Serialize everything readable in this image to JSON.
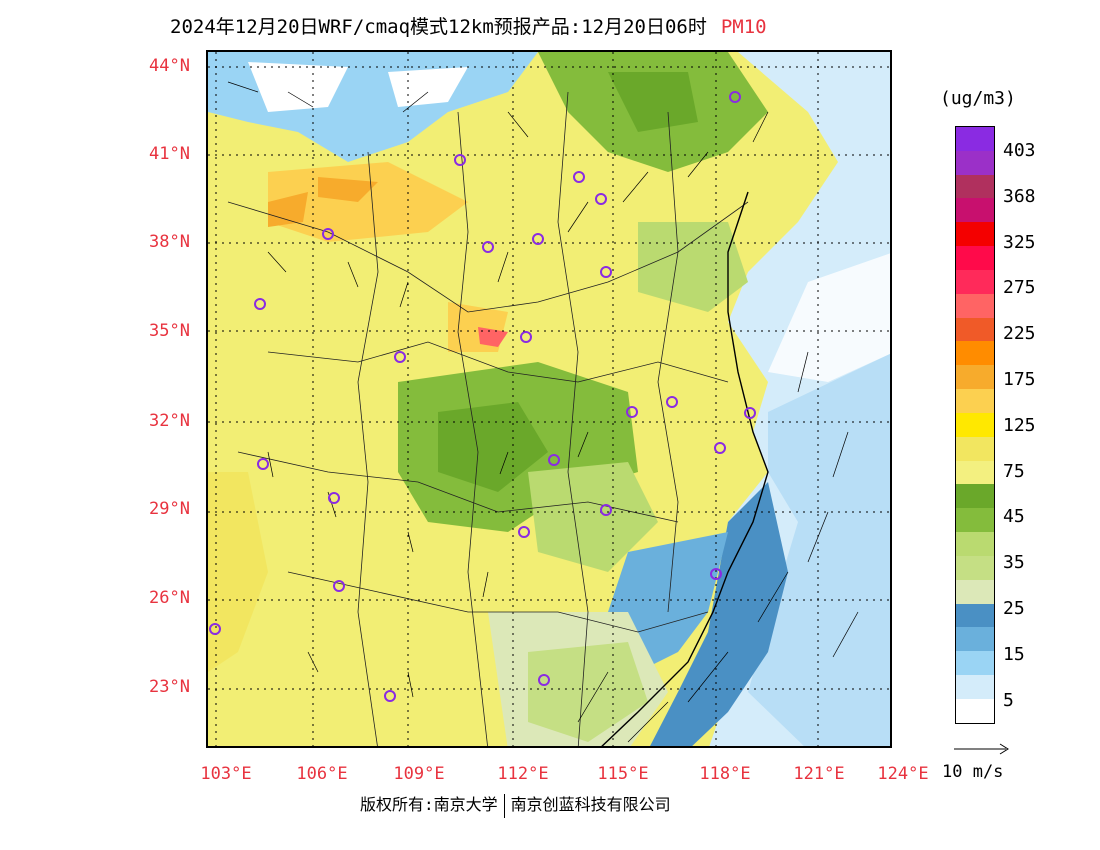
{
  "title": "2024年12月20日WRF/cmaq模式12km预报产品:12月20日06时",
  "variable": "PM10",
  "units": "(ug/m3)",
  "lat_labels": [
    "44°N",
    "41°N",
    "38°N",
    "35°N",
    "32°N",
    "29°N",
    "26°N",
    "23°N"
  ],
  "lon_labels": [
    "103°E",
    "106°E",
    "109°E",
    "112°E",
    "115°E",
    "118°E",
    "121°E",
    "124°E"
  ],
  "colorbar": {
    "labels": [
      "403",
      "368",
      "325",
      "275",
      "225",
      "175",
      "125",
      "75",
      "45",
      "35",
      "25",
      "15",
      "5"
    ],
    "colors": [
      "#8a2be2",
      "#9b30c8",
      "#b0305e",
      "#c8106e",
      "#f40000",
      "#ff0a4a",
      "#ff2a5a",
      "#ff6464",
      "#f05a28",
      "#ff8c00",
      "#f7ab2c",
      "#fcd050",
      "#ffe800",
      "#f2e660",
      "#f3f080",
      "#6aa82a",
      "#84bc3c",
      "#bada70",
      "#c5df84",
      "#dce8b8",
      "#4a90c4",
      "#6ab0dc",
      "#9ad4f4",
      "#d4ecfa",
      "#ffffff"
    ]
  },
  "wind_legend": "10 m/s",
  "footer": {
    "left": "版权所有:南京大学",
    "right": "南京创蓝科技有限公司"
  }
}
